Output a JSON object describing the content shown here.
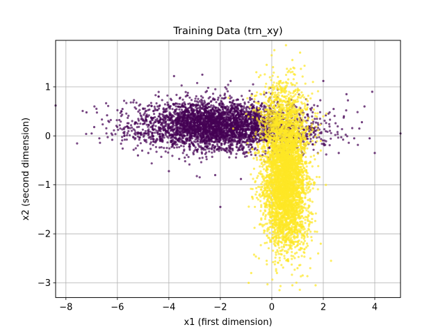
{
  "chart_data": {
    "type": "scatter",
    "title": "Training Data (trn_xy)",
    "xlabel": "x1 (first dimension)",
    "ylabel": "x2 (second dimension)",
    "xlim": [
      -8.4,
      5.0
    ],
    "ylim": [
      -3.3,
      1.95
    ],
    "xticks": [
      -8,
      -6,
      -4,
      -2,
      0,
      2,
      4
    ],
    "yticks": [
      -3,
      -2,
      -1,
      0,
      1
    ],
    "grid": true,
    "legend": "none",
    "series": [
      {
        "color": "#440154",
        "clusters": [
          {
            "count": 2600,
            "center": [
              -2.5,
              0.22
            ],
            "spread": [
              1.1,
              0.26
            ],
            "correlation": 0.0
          },
          {
            "count": 700,
            "center": [
              -1.0,
              0.22
            ],
            "spread": [
              0.9,
              0.22
            ],
            "correlation": 0.0
          },
          {
            "count": 420,
            "center": [
              0.8,
              0.12
            ],
            "spread": [
              0.9,
              0.25
            ],
            "correlation": 0.0
          },
          {
            "count": 200,
            "center": [
              -4.8,
              0.2
            ],
            "spread": [
              1.0,
              0.22
            ],
            "correlation": 0.0
          }
        ],
        "points": [
          [
            -7.2,
            0.48
          ],
          [
            -6.9,
            0.18
          ],
          [
            -6.4,
            0.42
          ],
          [
            -6.7,
            -0.05
          ],
          [
            -7.0,
            0.05
          ],
          [
            -6.2,
            -0.08
          ],
          [
            -5.8,
            0.55
          ],
          [
            -3.8,
            1.22
          ],
          [
            -2.7,
            1.25
          ],
          [
            -1.6,
            1.12
          ],
          [
            -2.2,
            -0.8
          ],
          [
            -2.0,
            -1.45
          ],
          [
            -1.2,
            -0.88
          ],
          [
            -4.8,
            -0.35
          ],
          [
            -5.2,
            -0.4
          ],
          [
            -4.0,
            -0.72
          ],
          [
            2.8,
            0.4
          ],
          [
            3.6,
            0.6
          ],
          [
            3.9,
            0.9
          ],
          [
            3.5,
            0.28
          ],
          [
            3.2,
            -0.05
          ],
          [
            3.4,
            0.15
          ],
          [
            2.4,
            0.55
          ],
          [
            2.6,
            -0.35
          ],
          [
            4.0,
            -0.35
          ],
          [
            5.0,
            0.05
          ],
          [
            -8.4,
            0.62
          ],
          [
            3.8,
            -0.05
          ],
          [
            2.9,
            0.85
          ],
          [
            2.0,
            1.12
          ]
        ]
      },
      {
        "color": "#fde725",
        "clusters": [
          {
            "count": 3400,
            "center": [
              0.5,
              -0.85
            ],
            "spread": [
              0.42,
              0.62
            ],
            "correlation": 0.0
          },
          {
            "count": 900,
            "center": [
              0.45,
              0.3
            ],
            "spread": [
              0.5,
              0.42
            ],
            "correlation": 0.0
          },
          {
            "count": 500,
            "center": [
              0.65,
              -1.7
            ],
            "spread": [
              0.42,
              0.45
            ],
            "correlation": 0.0
          }
        ],
        "points": [
          [
            -0.2,
            1.45
          ],
          [
            0.1,
            1.75
          ],
          [
            0.55,
            1.85
          ],
          [
            1.1,
            1.7
          ],
          [
            0.8,
            1.55
          ],
          [
            -0.5,
            1.2
          ],
          [
            -0.3,
            0.9
          ],
          [
            -1.5,
            0.15
          ],
          [
            -0.9,
            -0.35
          ],
          [
            -1.0,
            0.45
          ],
          [
            -0.5,
            -2.5
          ],
          [
            -0.8,
            -2.8
          ],
          [
            -0.9,
            -3.0
          ],
          [
            0.3,
            -3.15
          ],
          [
            0.8,
            -3.05
          ],
          [
            1.2,
            -2.85
          ],
          [
            1.5,
            -2.5
          ],
          [
            1.8,
            -2.4
          ],
          [
            2.3,
            -2.55
          ],
          [
            1.9,
            -2.2
          ],
          [
            1.7,
            -3.05
          ],
          [
            1.0,
            -2.7
          ],
          [
            0.2,
            -2.8
          ],
          [
            -0.2,
            -2.55
          ],
          [
            2.1,
            -1.0
          ],
          [
            1.9,
            -0.3
          ],
          [
            2.0,
            0.4
          ],
          [
            1.6,
            1.1
          ],
          [
            -0.6,
            1.3
          ],
          [
            0.9,
            1.25
          ]
        ]
      }
    ]
  }
}
